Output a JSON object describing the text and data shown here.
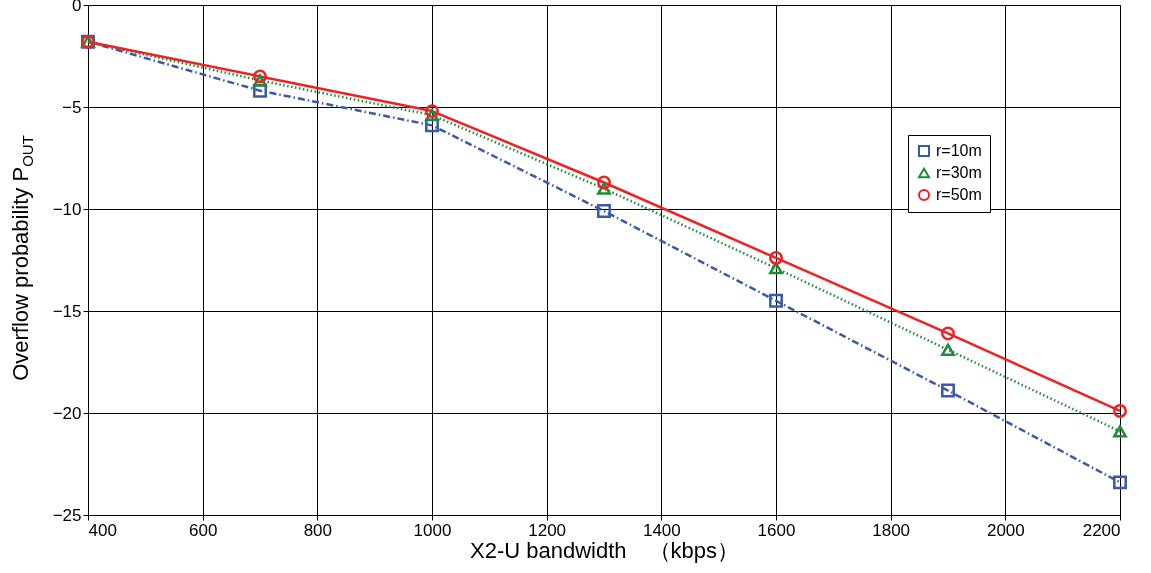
{
  "chart_data": {
    "type": "line",
    "xlabel": "X2-U bandwidth　（kbps）",
    "ylabel": "Overflow probability P$_{OUT}$",
    "x": [
      400,
      700,
      1000,
      1300,
      1600,
      1900,
      2200
    ],
    "series": [
      {
        "name": "r=10m",
        "color": "#3a5aa8",
        "marker": "square",
        "line_style": "dashdot",
        "values": [
          -1.8,
          -4.2,
          -5.9,
          -10.1,
          -14.5,
          -18.9,
          -23.4
        ]
      },
      {
        "name": "r=30m",
        "color": "#1f8a3a",
        "marker": "triangle",
        "line_style": "dotted",
        "values": [
          -1.8,
          -3.7,
          -5.4,
          -9.0,
          -12.9,
          -16.9,
          -20.9
        ]
      },
      {
        "name": "r=50m",
        "color": "#ee2222",
        "marker": "circle",
        "line_style": "solid",
        "values": [
          -1.8,
          -3.5,
          -5.2,
          -8.7,
          -12.4,
          -16.1,
          -19.9
        ]
      }
    ],
    "xlim": [
      400,
      2200
    ],
    "xticks": [
      400,
      600,
      800,
      1000,
      1200,
      1400,
      1600,
      1800,
      2000,
      2200
    ],
    "ylim": [
      -25,
      0
    ],
    "yticks": [
      -25,
      -20,
      -15,
      -10,
      -5,
      0
    ],
    "grid": true,
    "legend": "top right"
  }
}
